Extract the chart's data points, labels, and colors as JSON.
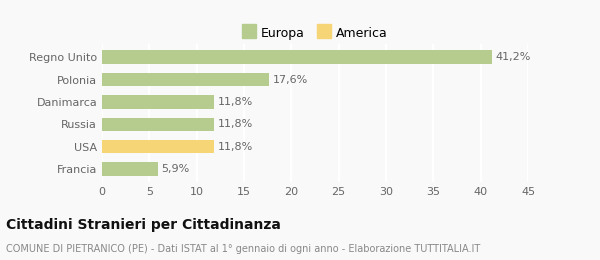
{
  "categories": [
    "Regno Unito",
    "Polonia",
    "Danimarca",
    "Russia",
    "USA",
    "Francia"
  ],
  "values": [
    41.2,
    17.6,
    11.8,
    11.8,
    11.8,
    5.9
  ],
  "labels": [
    "41,2%",
    "17,6%",
    "11,8%",
    "11,8%",
    "11,8%",
    "5,9%"
  ],
  "colors": [
    "#b5cc8e",
    "#b5cc8e",
    "#b5cc8e",
    "#b5cc8e",
    "#f5d576",
    "#b5cc8e"
  ],
  "legend": [
    {
      "label": "Europa",
      "color": "#b5cc8e"
    },
    {
      "label": "America",
      "color": "#f5d576"
    }
  ],
  "xlim": [
    0,
    45
  ],
  "xticks": [
    0,
    5,
    10,
    15,
    20,
    25,
    30,
    35,
    40,
    45
  ],
  "title": "Cittadini Stranieri per Cittadinanza",
  "subtitle": "COMUNE DI PIETRANICO (PE) - Dati ISTAT al 1° gennaio di ogni anno - Elaborazione TUTTITALIA.IT",
  "background_color": "#f9f9f9",
  "grid_color": "#ffffff",
  "title_fontsize": 10,
  "subtitle_fontsize": 7,
  "label_fontsize": 8,
  "tick_fontsize": 8
}
